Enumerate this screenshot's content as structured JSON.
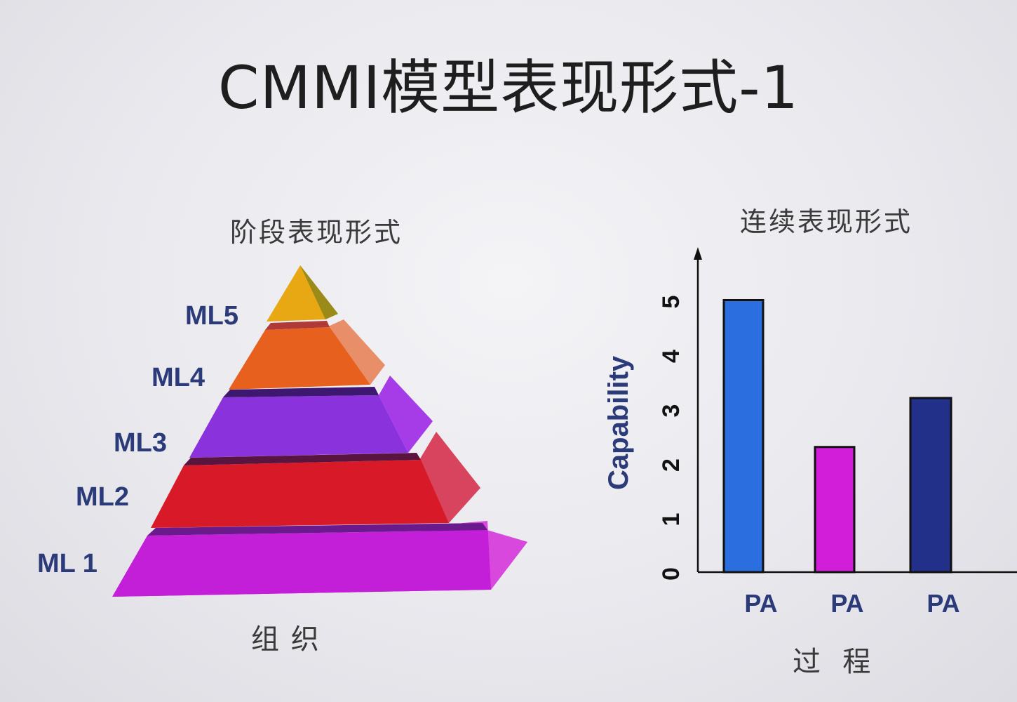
{
  "slide": {
    "title": "CMMI模型表现形式-1"
  },
  "staged": {
    "title": "阶段表现形式",
    "bottom_label": "组 织",
    "levels": [
      {
        "label": "ML5",
        "color": "#e8a814"
      },
      {
        "label": "ML4",
        "color": "#e8601e"
      },
      {
        "label": "ML3",
        "color": "#8a32dc"
      },
      {
        "label": "ML2",
        "color": "#d81a28"
      },
      {
        "label": "ML 1",
        "color": "#c020d8"
      }
    ],
    "label_color": "#2b3a78"
  },
  "continuous": {
    "title": "连续表现形式",
    "bottom_label": "过  程",
    "chart_data": {
      "type": "bar",
      "categories": [
        "PA",
        "PA",
        "PA"
      ],
      "values": [
        5,
        2.3,
        3.2
      ],
      "ylabel": "Capability",
      "yticks": [
        "0",
        "1",
        "2",
        "3",
        "4",
        "5"
      ],
      "ylim": [
        0,
        5.6
      ],
      "colors": [
        "#2a6ee0",
        "#d21ed8",
        "#23308a"
      ],
      "axis_label_color": "#2b3a78"
    }
  }
}
